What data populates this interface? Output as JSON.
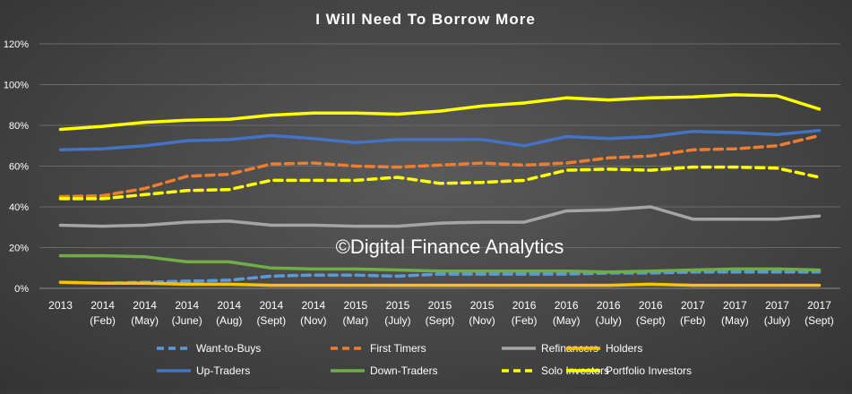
{
  "chart_data": {
    "type": "line",
    "title": "I Will Need To Borrow More",
    "watermark": "©Digital Finance Analytics",
    "xlabel": "",
    "ylabel": "",
    "ylim": [
      0,
      120
    ],
    "yticks": [
      "0%",
      "20%",
      "40%",
      "60%",
      "80%",
      "100%",
      "120%"
    ],
    "categories": [
      [
        "2013"
      ],
      [
        "2014",
        "(Feb)"
      ],
      [
        "2014",
        "(May)"
      ],
      [
        "2014",
        "(June)"
      ],
      [
        "2014",
        "(Aug)"
      ],
      [
        "2014",
        "(Sept)"
      ],
      [
        "2014",
        "(Nov)"
      ],
      [
        "2015",
        "(Mar)"
      ],
      [
        "2015",
        "(July)"
      ],
      [
        "2015",
        "(Sept)"
      ],
      [
        "2015",
        "(Nov)"
      ],
      [
        "2016",
        "(Feb)"
      ],
      [
        "2016",
        "(May)"
      ],
      [
        "2016",
        "(July)"
      ],
      [
        "2016",
        "(Sept)"
      ],
      [
        "2017",
        "(Feb)"
      ],
      [
        "2017",
        "(May)"
      ],
      [
        "2017",
        "(July)"
      ],
      [
        "2017",
        "(Sept)"
      ]
    ],
    "grid": true,
    "legend_position": "bottom",
    "series": [
      {
        "name": "Want-to-Buys",
        "color": "#5b9bd5",
        "dash": true,
        "values": [
          3,
          2.5,
          3,
          3.5,
          4,
          6,
          6.5,
          6.5,
          6,
          7,
          7,
          7,
          7,
          7.5,
          7.5,
          8,
          8,
          8,
          8
        ]
      },
      {
        "name": "First Timers",
        "color": "#ed7d31",
        "dash": true,
        "values": [
          45,
          45.5,
          49,
          55,
          56,
          61,
          61.5,
          60,
          59.5,
          60.5,
          61.5,
          60.5,
          61.5,
          64,
          65,
          68,
          68.5,
          70,
          75
        ]
      },
      {
        "name": "Refinancers",
        "color": "#a5a5a5",
        "dash": false,
        "values": [
          31,
          30.5,
          31,
          32.5,
          33,
          31,
          31,
          30.5,
          30.5,
          32,
          32.5,
          32.5,
          38,
          38.5,
          40,
          34,
          34,
          34,
          35.5
        ]
      },
      {
        "name": "Holders",
        "color": "#ffc000",
        "dash": false,
        "values": [
          3,
          2.5,
          2.5,
          2,
          2,
          1.5,
          1.5,
          1.5,
          1.5,
          1.5,
          1.5,
          1.5,
          1.5,
          1.5,
          2,
          1.5,
          1.5,
          1.5,
          1.5
        ]
      },
      {
        "name": "Up-Traders",
        "color": "#4472c4",
        "dash": false,
        "values": [
          68,
          68.5,
          70,
          72.5,
          73,
          75,
          73.5,
          71.5,
          73,
          73,
          73,
          70,
          74.5,
          73.5,
          74.5,
          77,
          76.5,
          75.5,
          77.5
        ]
      },
      {
        "name": "Down-Traders",
        "color": "#70ad47",
        "dash": false,
        "values": [
          16,
          16,
          15.5,
          13,
          13,
          10,
          9.5,
          9.5,
          9,
          8.5,
          8.5,
          8.5,
          8.5,
          8,
          8.5,
          9,
          9.5,
          9.5,
          9
        ]
      },
      {
        "name": "Solo Investors",
        "color": "#ffff00",
        "dash": true,
        "values": [
          44,
          44,
          46,
          48,
          48.5,
          53,
          53,
          53,
          54.5,
          51.5,
          52,
          53,
          58,
          58.5,
          58,
          59.5,
          59.5,
          59,
          54.5
        ]
      },
      {
        "name": "Portfolio Investors",
        "color": "#ffff00",
        "dash": false,
        "values": [
          78,
          79.5,
          81.5,
          82.5,
          83,
          85,
          86,
          86,
          85.5,
          87,
          89.5,
          91,
          93.5,
          92.5,
          93.5,
          94,
          95,
          94.5,
          88
        ]
      }
    ]
  }
}
